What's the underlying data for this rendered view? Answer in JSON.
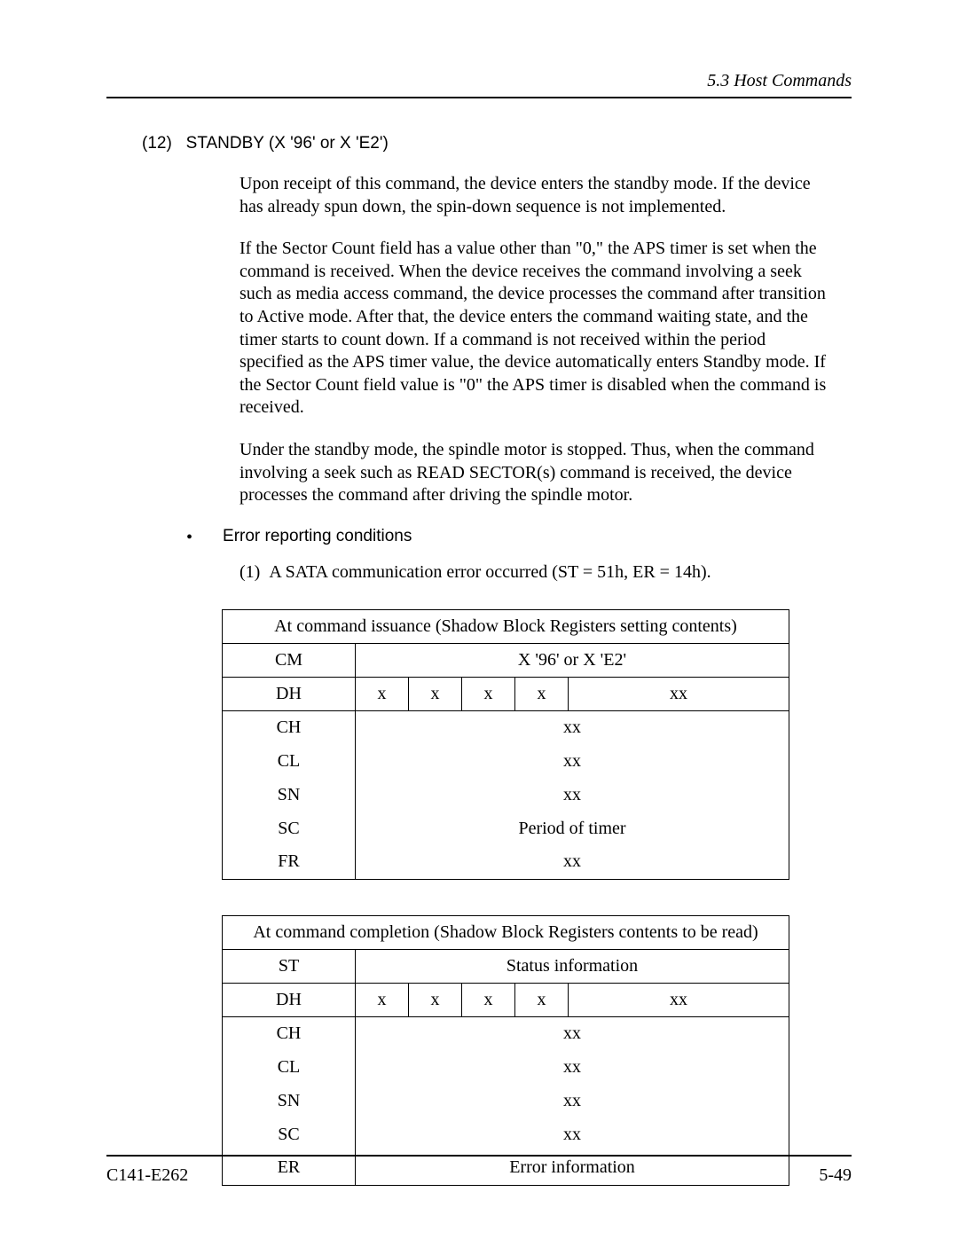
{
  "header": {
    "section": "5.3  Host Commands"
  },
  "title": {
    "num": "(12)",
    "text": "STANDBY (X '96' or X 'E2')"
  },
  "paras": {
    "p1": "Upon receipt of this command, the device enters the standby mode.  If the device has already spun down, the spin-down sequence is not implemented.",
    "p2": "If the Sector Count field has a value other than \"0,\" the APS timer is set when the command is received.  When the device receives the command involving a seek such as media access command, the device processes the command after transition to Active mode.  After that, the device enters the command waiting state, and the timer starts to count down.  If a command is not received within the period specified as the APS timer value, the device automatically enters Standby mode.  If the Sector Count field value is \"0\" the APS timer is disabled when the command is received.",
    "p3": "Under the standby mode, the spindle motor is stopped. Thus, when the command involving a seek such as READ SECTOR(s) command is received, the device processes the command after driving the spindle motor."
  },
  "bullet": {
    "text": "Error reporting conditions"
  },
  "enum1": {
    "num": "(1)",
    "text": "A SATA communication error occurred (ST = 51h, ER = 14h)."
  },
  "table1": {
    "caption": "At command issuance (Shadow Block Registers setting contents)",
    "rows": {
      "cm": {
        "label": "CM",
        "val": "X '96' or X 'E2'"
      },
      "dh": {
        "label": "DH",
        "b0": "x",
        "b1": "x",
        "b2": "x",
        "b3": "x",
        "rest": "xx"
      },
      "ch": {
        "label": "CH",
        "val": "xx"
      },
      "cl": {
        "label": "CL",
        "val": "xx"
      },
      "sn": {
        "label": "SN",
        "val": "xx"
      },
      "sc": {
        "label": "SC",
        "val": "Period of timer"
      },
      "fr": {
        "label": "FR",
        "val": "xx"
      }
    }
  },
  "table2": {
    "caption": "At command completion (Shadow Block Registers contents to be read)",
    "rows": {
      "st": {
        "label": "ST",
        "val": "Status information"
      },
      "dh": {
        "label": "DH",
        "b0": "x",
        "b1": "x",
        "b2": "x",
        "b3": "x",
        "rest": "xx"
      },
      "ch": {
        "label": "CH",
        "val": "xx"
      },
      "cl": {
        "label": "CL",
        "val": "xx"
      },
      "sn": {
        "label": "SN",
        "val": "xx"
      },
      "sc": {
        "label": "SC",
        "val": "xx"
      },
      "er": {
        "label": "ER",
        "val": "Error information"
      }
    }
  },
  "footer": {
    "left": "C141-E262",
    "right": "5-49"
  }
}
